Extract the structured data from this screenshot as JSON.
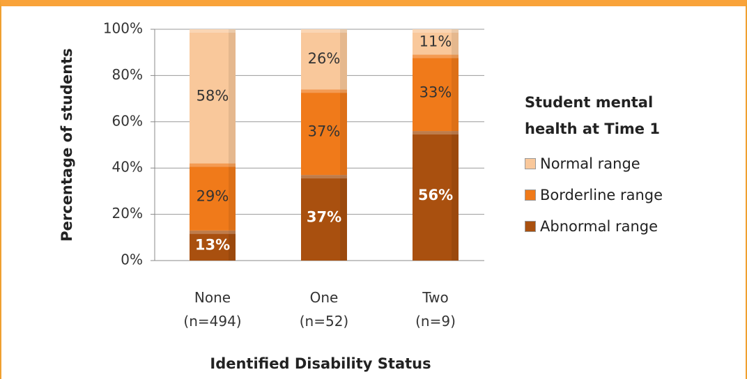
{
  "chart_data": {
    "type": "stacked_bar",
    "x_label": "Identified Disability Status",
    "y_label": "Percentage of students",
    "legend_title": "Student mental health at Time 1",
    "legend": "right",
    "categories": [
      "None\n(n=494)",
      "One\n(n=52)",
      "Two\n(n=9)"
    ],
    "series": [
      {
        "name": "Abnormal range",
        "color": "#a9500f",
        "values": [
          13,
          37,
          56
        ],
        "value_labels": [
          "13%",
          "37%",
          "56%"
        ]
      },
      {
        "name": "Borderline range",
        "color": "#f07a1a",
        "values": [
          29,
          37,
          33
        ],
        "value_labels": [
          "29%",
          "37%",
          "33%"
        ]
      },
      {
        "name": "Normal range",
        "color": "#f9c89b",
        "values": [
          58,
          26,
          11
        ],
        "value_labels": [
          "58%",
          "26%",
          "11%"
        ]
      }
    ],
    "ylim": [
      0,
      100
    ],
    "yticks": [
      {
        "value": 0,
        "label": "0%"
      },
      {
        "value": 20,
        "label": "20%"
      },
      {
        "value": 40,
        "label": "40%"
      },
      {
        "value": 60,
        "label": "60%"
      },
      {
        "value": 80,
        "label": "80%"
      },
      {
        "value": 100,
        "label": "100%"
      }
    ],
    "grid": true
  }
}
